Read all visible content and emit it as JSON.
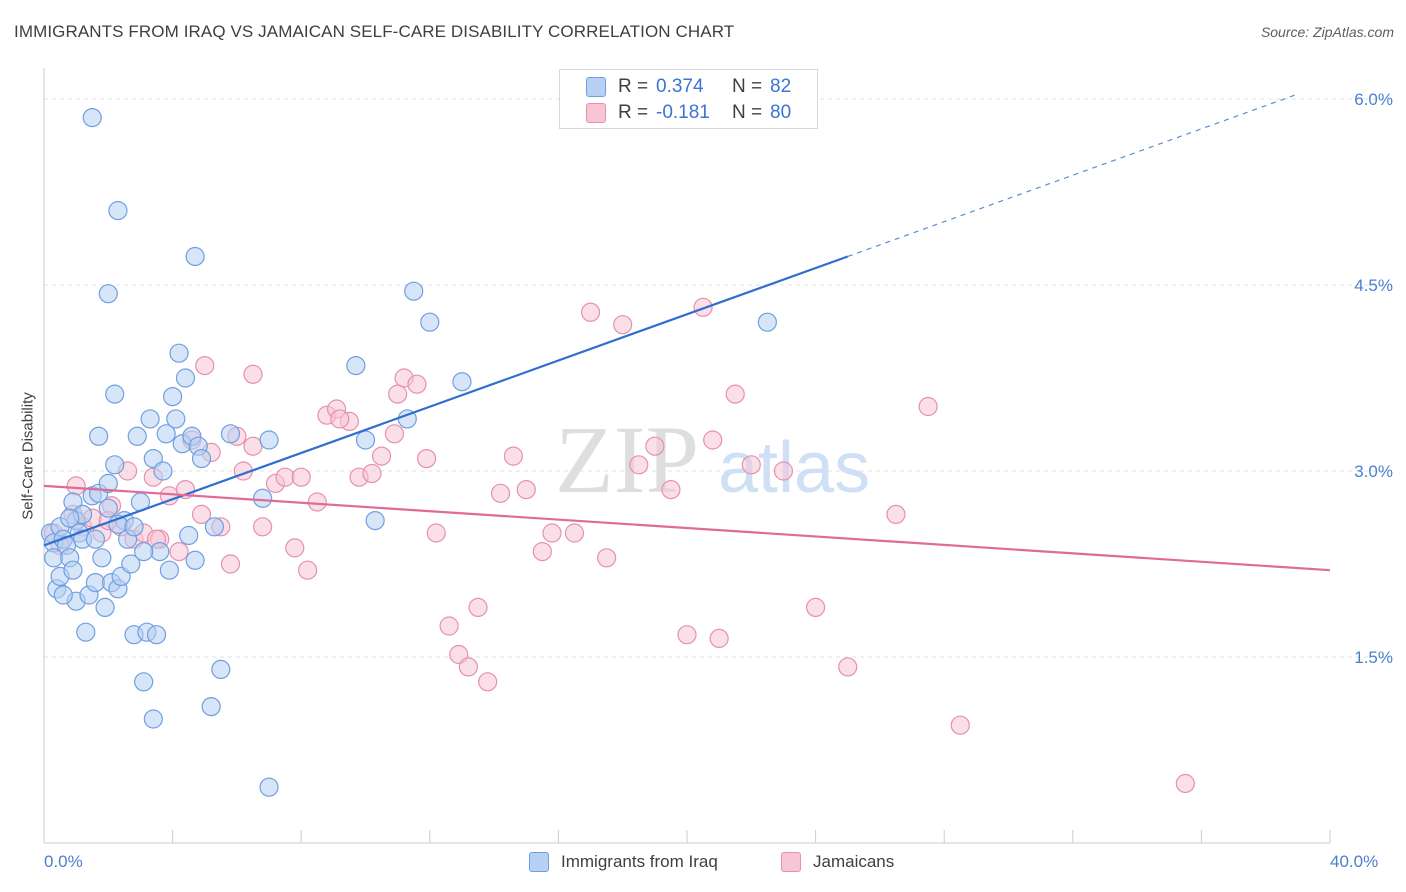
{
  "title": "IMMIGRANTS FROM IRAQ VS JAMAICAN SELF-CARE DISABILITY CORRELATION CHART",
  "source": "Source: ZipAtlas.com",
  "colors": {
    "blue_fill": "#b7d0f3",
    "blue_stroke": "#6f9fe0",
    "blue_line": "#2f6fd0",
    "pink_fill": "#f7c5d5",
    "pink_stroke": "#e690ae",
    "pink_line": "#e06a98",
    "axis_text": "#4a7fd0",
    "grid": "#dde1e6"
  },
  "legend_top": {
    "rows": [
      {
        "r_label": "R =",
        "r_value": "0.374",
        "n_label": "N =",
        "n_value": "82",
        "series": "blue"
      },
      {
        "r_label": "R =",
        "r_value": "-0.181",
        "n_label": "N =",
        "n_value": "80",
        "series": "pink"
      }
    ]
  },
  "watermark": {
    "zip": "ZIP",
    "atlas": "atlas"
  },
  "chart_data": {
    "type": "scatter",
    "xlabel": "",
    "ylabel": "Self-Care Disability",
    "xlim": [
      0,
      40
    ],
    "ylim": [
      0,
      6.25
    ],
    "x_tick_labels": [
      "0.0%",
      "40.0%"
    ],
    "y_ticks": [
      1.5,
      3.0,
      4.5,
      6.0
    ],
    "y_tick_labels": [
      "1.5%",
      "3.0%",
      "4.5%",
      "6.0%"
    ],
    "grid": "horizontal dashed",
    "legend_placement": "bottom-center",
    "series": [
      {
        "name": "Immigrants from Iraq",
        "color": "blue",
        "trend": {
          "x0": 0,
          "y0": 2.4,
          "x1": 25,
          "y1": 4.73,
          "dashed_to_x": 39,
          "dashed_to_y": 6.04
        },
        "points": [
          [
            0.2,
            2.5
          ],
          [
            0.3,
            2.42
          ],
          [
            0.3,
            2.3
          ],
          [
            0.4,
            2.05
          ],
          [
            0.5,
            2.15
          ],
          [
            0.5,
            2.55
          ],
          [
            0.6,
            2.45
          ],
          [
            0.7,
            2.4
          ],
          [
            0.8,
            2.3
          ],
          [
            0.9,
            2.2
          ],
          [
            1.0,
            1.95
          ],
          [
            1.0,
            2.6
          ],
          [
            1.1,
            2.5
          ],
          [
            1.2,
            2.45
          ],
          [
            1.3,
            1.7
          ],
          [
            1.4,
            2.0
          ],
          [
            1.5,
            2.8
          ],
          [
            1.6,
            2.1
          ],
          [
            1.7,
            2.82
          ],
          [
            1.8,
            2.3
          ],
          [
            1.9,
            1.9
          ],
          [
            2.0,
            2.7
          ],
          [
            2.1,
            2.1
          ],
          [
            2.2,
            3.05
          ],
          [
            2.3,
            2.05
          ],
          [
            2.4,
            2.15
          ],
          [
            2.5,
            2.6
          ],
          [
            2.6,
            2.45
          ],
          [
            2.7,
            2.25
          ],
          [
            2.8,
            1.68
          ],
          [
            2.9,
            3.28
          ],
          [
            3.0,
            2.75
          ],
          [
            3.1,
            1.3
          ],
          [
            3.2,
            1.7
          ],
          [
            3.3,
            3.42
          ],
          [
            3.4,
            3.1
          ],
          [
            3.5,
            1.68
          ],
          [
            3.6,
            2.35
          ],
          [
            3.7,
            3.0
          ],
          [
            3.8,
            3.3
          ],
          [
            3.9,
            2.2
          ],
          [
            4.0,
            3.6
          ],
          [
            4.1,
            3.42
          ],
          [
            4.2,
            3.95
          ],
          [
            4.3,
            3.22
          ],
          [
            4.4,
            3.75
          ],
          [
            4.5,
            2.48
          ],
          [
            4.6,
            3.28
          ],
          [
            4.7,
            2.28
          ],
          [
            4.8,
            3.2
          ],
          [
            5.3,
            2.55
          ],
          [
            5.5,
            1.4
          ],
          [
            5.8,
            3.3
          ],
          [
            6.8,
            2.78
          ],
          [
            7.0,
            3.25
          ],
          [
            9.7,
            3.85
          ],
          [
            10.0,
            3.25
          ],
          [
            10.3,
            2.6
          ],
          [
            11.5,
            4.45
          ],
          [
            12.0,
            4.2
          ],
          [
            13.0,
            3.72
          ],
          [
            22.5,
            4.2
          ],
          [
            1.5,
            5.85
          ],
          [
            2.3,
            5.1
          ],
          [
            4.7,
            4.73
          ],
          [
            2.0,
            4.43
          ],
          [
            2.2,
            3.62
          ],
          [
            3.4,
            1.0
          ],
          [
            7.0,
            0.45
          ],
          [
            2.3,
            2.57
          ],
          [
            1.6,
            2.45
          ],
          [
            0.9,
            2.75
          ],
          [
            1.7,
            3.28
          ],
          [
            2.8,
            2.55
          ],
          [
            3.1,
            2.35
          ],
          [
            2.0,
            2.9
          ],
          [
            1.2,
            2.65
          ],
          [
            0.6,
            2.0
          ],
          [
            4.9,
            3.1
          ],
          [
            11.3,
            3.42
          ],
          [
            5.2,
            1.1
          ],
          [
            0.8,
            2.62
          ]
        ]
      },
      {
        "name": "Jamaicans",
        "color": "pink",
        "trend": {
          "x0": 0,
          "y0": 2.88,
          "x1": 40,
          "y1": 2.2
        },
        "points": [
          [
            0.3,
            2.5
          ],
          [
            0.6,
            2.45
          ],
          [
            0.9,
            2.65
          ],
          [
            1.2,
            2.55
          ],
          [
            1.5,
            2.62
          ],
          [
            1.8,
            2.5
          ],
          [
            2.1,
            2.72
          ],
          [
            2.4,
            2.55
          ],
          [
            2.6,
            3.0
          ],
          [
            2.8,
            2.45
          ],
          [
            3.1,
            2.5
          ],
          [
            3.4,
            2.95
          ],
          [
            3.6,
            2.45
          ],
          [
            3.9,
            2.8
          ],
          [
            4.2,
            2.35
          ],
          [
            4.4,
            2.85
          ],
          [
            4.6,
            3.25
          ],
          [
            4.9,
            2.65
          ],
          [
            5.2,
            3.15
          ],
          [
            5.5,
            2.55
          ],
          [
            5.8,
            2.25
          ],
          [
            6.0,
            3.28
          ],
          [
            6.2,
            3.0
          ],
          [
            6.5,
            3.2
          ],
          [
            6.8,
            2.55
          ],
          [
            7.2,
            2.9
          ],
          [
            7.5,
            2.95
          ],
          [
            7.8,
            2.38
          ],
          [
            8.0,
            2.95
          ],
          [
            8.2,
            2.2
          ],
          [
            8.5,
            2.75
          ],
          [
            8.8,
            3.45
          ],
          [
            9.1,
            3.5
          ],
          [
            9.5,
            3.4
          ],
          [
            9.8,
            2.95
          ],
          [
            10.2,
            2.98
          ],
          [
            10.5,
            3.12
          ],
          [
            10.9,
            3.3
          ],
          [
            11.2,
            3.75
          ],
          [
            11.6,
            3.7
          ],
          [
            11.9,
            3.1
          ],
          [
            12.2,
            2.5
          ],
          [
            12.6,
            1.75
          ],
          [
            12.9,
            1.52
          ],
          [
            13.2,
            1.42
          ],
          [
            13.5,
            1.9
          ],
          [
            13.8,
            1.3
          ],
          [
            14.2,
            2.82
          ],
          [
            14.6,
            3.12
          ],
          [
            15.0,
            2.85
          ],
          [
            15.5,
            2.35
          ],
          [
            15.8,
            2.5
          ],
          [
            16.5,
            2.5
          ],
          [
            17.0,
            4.28
          ],
          [
            17.5,
            2.3
          ],
          [
            18.0,
            4.18
          ],
          [
            18.5,
            3.05
          ],
          [
            19.0,
            3.2
          ],
          [
            19.5,
            2.85
          ],
          [
            20.0,
            1.68
          ],
          [
            20.5,
            4.32
          ],
          [
            20.8,
            3.25
          ],
          [
            21.0,
            1.65
          ],
          [
            21.5,
            3.62
          ],
          [
            22.0,
            3.05
          ],
          [
            23.0,
            3.0
          ],
          [
            24.0,
            1.9
          ],
          [
            25.0,
            1.42
          ],
          [
            26.5,
            2.65
          ],
          [
            27.5,
            3.52
          ],
          [
            28.5,
            0.95
          ],
          [
            35.5,
            0.48
          ],
          [
            5.0,
            3.85
          ],
          [
            9.2,
            3.42
          ],
          [
            11.0,
            3.62
          ],
          [
            3.5,
            2.45
          ],
          [
            6.5,
            3.78
          ],
          [
            1.0,
            2.88
          ],
          [
            2.0,
            2.6
          ],
          [
            0.5,
            2.4
          ]
        ]
      }
    ]
  }
}
